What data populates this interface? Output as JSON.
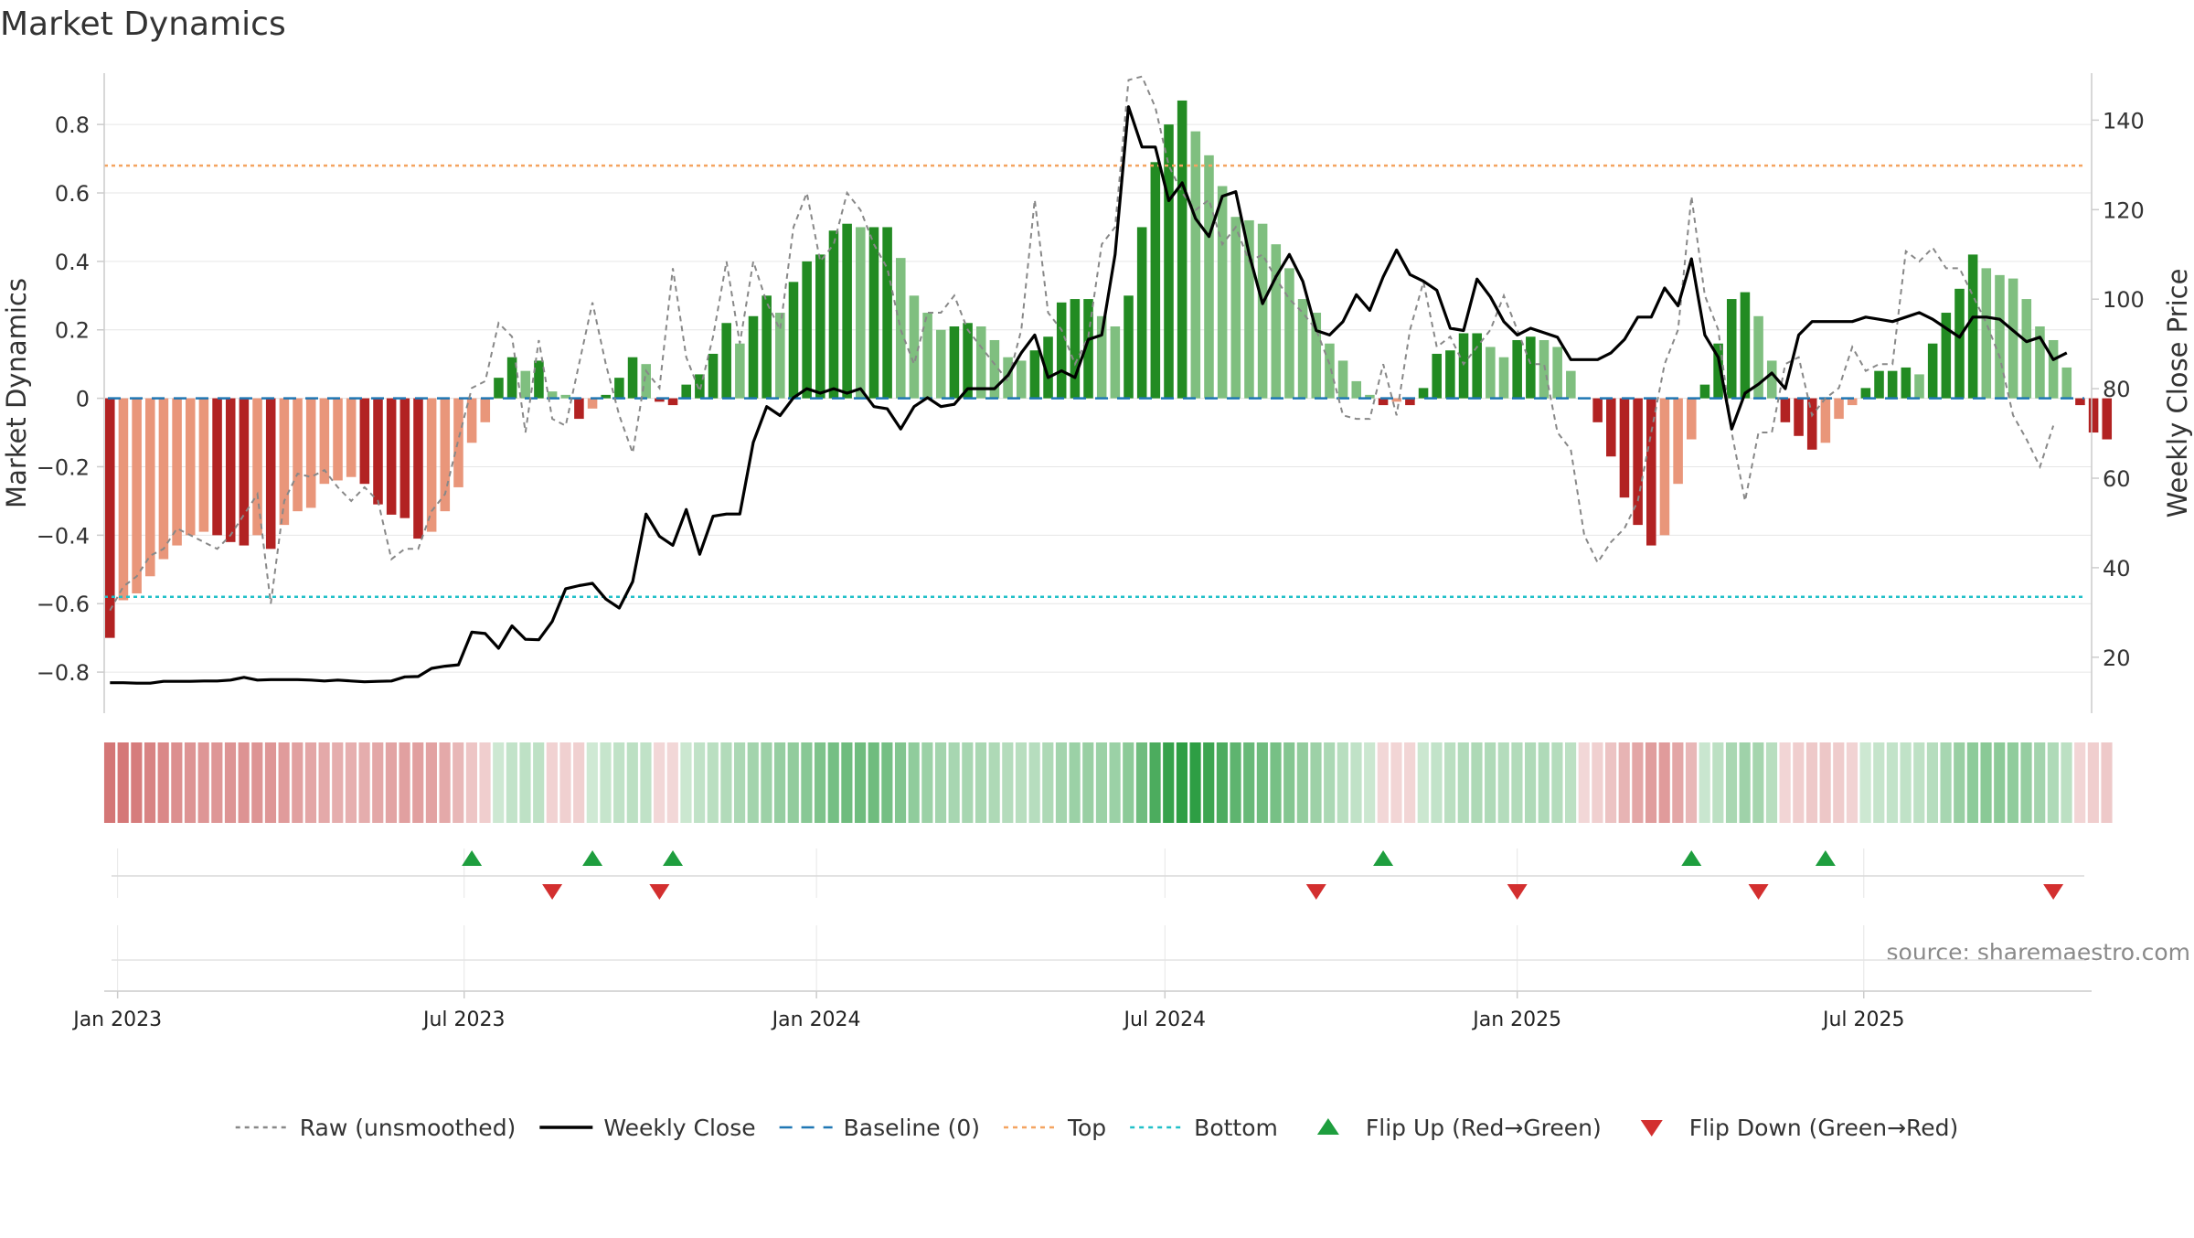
{
  "chart_data": {
    "type": "bar",
    "title": "Market Dynamics",
    "ylabel": "Market Dynamics",
    "y2label": "Weekly Close Price",
    "source": "source: sharemaestro.com",
    "ylim": [
      -0.92,
      0.95
    ],
    "y2lim": [
      7.5,
      150.5
    ],
    "y_ticks": [
      -0.8,
      -0.6,
      -0.4,
      -0.2,
      0,
      0.2,
      0.4,
      0.6,
      0.8
    ],
    "y_tick_labels": [
      "−0.8",
      "−0.6",
      "−0.4",
      "−0.2",
      "0",
      "0.2",
      "0.4",
      "0.6",
      "0.8"
    ],
    "y2_ticks": [
      20,
      40,
      60,
      80,
      100,
      120,
      140
    ],
    "y2_tick_labels": [
      "20",
      "40",
      "60",
      "80",
      "100",
      "120",
      "140"
    ],
    "x_ticks": [
      "2023-01-01",
      "2023-07-01",
      "2024-01-01",
      "2024-07-01",
      "2025-01-01",
      "2025-07-01"
    ],
    "x_tick_labels": [
      "Jan 2023",
      "Jul 2023",
      "Jan 2024",
      "Jul 2024",
      "Jan 2025",
      "Jul 2025"
    ],
    "x_range": [
      "2022-12-25",
      "2025-10-28"
    ],
    "first_week": "2022-12-28",
    "week_step_days": 7,
    "top_level": 0.68,
    "bottom_level": -0.58,
    "baseline": 0,
    "dynamics": [
      -0.7,
      -0.59,
      -0.57,
      -0.52,
      -0.47,
      -0.43,
      -0.4,
      -0.39,
      -0.4,
      -0.42,
      -0.43,
      -0.4,
      -0.44,
      -0.37,
      -0.33,
      -0.32,
      -0.25,
      -0.24,
      -0.23,
      -0.25,
      -0.31,
      -0.34,
      -0.35,
      -0.41,
      -0.39,
      -0.33,
      -0.26,
      -0.13,
      -0.07,
      0.06,
      0.12,
      0.08,
      0.11,
      0.02,
      0.01,
      -0.06,
      -0.03,
      0.01,
      0.06,
      0.12,
      0.1,
      -0.01,
      -0.02,
      0.04,
      0.07,
      0.13,
      0.22,
      0.16,
      0.24,
      0.3,
      0.25,
      0.34,
      0.4,
      0.42,
      0.49,
      0.51,
      0.5,
      0.5,
      0.5,
      0.41,
      0.3,
      0.25,
      0.2,
      0.21,
      0.22,
      0.21,
      0.17,
      0.12,
      0.11,
      0.14,
      0.18,
      0.28,
      0.29,
      0.29,
      0.24,
      0.21,
      0.3,
      0.5,
      0.69,
      0.8,
      0.87,
      0.78,
      0.71,
      0.62,
      0.53,
      0.52,
      0.51,
      0.45,
      0.38,
      0.29,
      0.25,
      0.16,
      0.11,
      0.05,
      0.01,
      -0.02,
      -0.01,
      -0.02,
      0.03,
      0.13,
      0.14,
      0.19,
      0.19,
      0.15,
      0.12,
      0.17,
      0.18,
      0.17,
      0.15,
      0.08,
      0.0,
      -0.07,
      -0.17,
      -0.29,
      -0.37,
      -0.43,
      -0.4,
      -0.25,
      -0.12,
      0.04,
      0.16,
      0.29,
      0.31,
      0.24,
      0.11,
      -0.07,
      -0.11,
      -0.15,
      -0.13,
      -0.06,
      -0.02,
      0.03,
      0.08,
      0.08,
      0.09,
      0.07,
      0.16,
      0.25,
      0.32,
      0.42,
      0.38,
      0.36,
      0.35,
      0.29,
      0.21,
      0.17,
      0.09,
      -0.02,
      -0.1,
      -0.12
    ],
    "raw": [
      -0.62,
      -0.55,
      -0.52,
      -0.46,
      -0.44,
      -0.38,
      -0.4,
      -0.42,
      -0.44,
      -0.4,
      -0.34,
      -0.28,
      -0.6,
      -0.3,
      -0.22,
      -0.23,
      -0.21,
      -0.26,
      -0.3,
      -0.26,
      -0.3,
      -0.47,
      -0.44,
      -0.44,
      -0.33,
      -0.28,
      -0.12,
      0.03,
      0.05,
      0.22,
      0.18,
      -0.1,
      0.17,
      -0.06,
      -0.08,
      0.1,
      0.28,
      0.1,
      -0.05,
      -0.16,
      0.08,
      0.03,
      0.38,
      0.12,
      0.02,
      0.18,
      0.4,
      0.16,
      0.4,
      0.28,
      0.2,
      0.5,
      0.6,
      0.4,
      0.45,
      0.6,
      0.55,
      0.45,
      0.38,
      0.2,
      0.1,
      0.25,
      0.25,
      0.3,
      0.2,
      0.15,
      0.1,
      0.05,
      0.2,
      0.58,
      0.25,
      0.2,
      0.1,
      0.18,
      0.45,
      0.5,
      0.93,
      0.94,
      0.85,
      0.68,
      0.6,
      0.55,
      0.58,
      0.45,
      0.5,
      0.4,
      0.42,
      0.35,
      0.29,
      0.25,
      0.2,
      0.1,
      -0.05,
      -0.06,
      -0.06,
      0.1,
      -0.05,
      0.2,
      0.34,
      0.15,
      0.18,
      0.1,
      0.15,
      0.2,
      0.3,
      0.2,
      0.1,
      0.1,
      -0.1,
      -0.15,
      -0.4,
      -0.48,
      -0.42,
      -0.38,
      -0.3,
      -0.1,
      0.1,
      0.2,
      0.59,
      0.3,
      0.2,
      -0.1,
      -0.3,
      -0.1,
      -0.1,
      0.1,
      0.12,
      -0.05,
      0.0,
      0.03,
      0.15,
      0.08,
      0.1,
      0.1,
      0.43,
      0.4,
      0.44,
      0.38,
      0.38,
      0.3,
      0.22,
      0.12,
      -0.05,
      -0.12,
      -0.2,
      -0.08
    ],
    "price": [
      14.3,
      14.3,
      14.2,
      14.2,
      14.6,
      14.6,
      14.6,
      14.7,
      14.7,
      14.9,
      15.5,
      14.9,
      15.0,
      15.0,
      15.0,
      14.9,
      14.7,
      14.9,
      14.7,
      14.5,
      14.6,
      14.7,
      15.6,
      15.7,
      17.5,
      18.0,
      18.3,
      25.6,
      25.3,
      22.0,
      27.0,
      24.0,
      23.9,
      28.0,
      35.3,
      36.0,
      36.5,
      33.0,
      31.0,
      36.9,
      52.0,
      47.0,
      45.0,
      53.0,
      43.0,
      51.5,
      52.0,
      52.0,
      68.0,
      76.0,
      74.0,
      78.0,
      80.0,
      79.0,
      80.0,
      79.0,
      80.0,
      76.0,
      75.5,
      71.0,
      76.0,
      78.0,
      76.0,
      76.5,
      80.0,
      80.0,
      80.0,
      83.0,
      88.0,
      92.0,
      82.5,
      84.0,
      82.5,
      91.0,
      92.0,
      110.0,
      143.0,
      134.0,
      134.0,
      122.0,
      126.0,
      118.0,
      114.0,
      123.0,
      124.0,
      110.0,
      99.0,
      105.0,
      110.0,
      104.0,
      93.0,
      92.0,
      95.0,
      101.0,
      97.5,
      105.0,
      111.0,
      105.5,
      104.0,
      102.0,
      93.5,
      93.0,
      104.5,
      100.5,
      95.0,
      92.0,
      93.5,
      92.5,
      91.5,
      86.5,
      86.5,
      86.5,
      88.0,
      91.0,
      96.0,
      96.0,
      102.5,
      98.5,
      109.0,
      92.0,
      87.0,
      71.0,
      79.0,
      81.0,
      83.5,
      80.0,
      92.0,
      95.0,
      95.0,
      95.0,
      95.0,
      96.0,
      95.5,
      95.0,
      96.0,
      97.0,
      95.5,
      93.5,
      91.5,
      96.0,
      96.0,
      95.5,
      93.0,
      90.5,
      91.5,
      86.5,
      88.0
    ],
    "band_levels": [
      -0.59,
      -0.58,
      -0.56,
      -0.52,
      -0.48,
      -0.44,
      -0.41,
      -0.4,
      -0.4,
      -0.41,
      -0.42,
      -0.41,
      -0.4,
      -0.37,
      -0.34,
      -0.31,
      -0.28,
      -0.26,
      -0.25,
      -0.26,
      -0.29,
      -0.32,
      -0.34,
      -0.35,
      -0.33,
      -0.28,
      -0.2,
      -0.12,
      -0.06,
      0.02,
      0.07,
      0.09,
      0.09,
      -0.04,
      -0.05,
      -0.05,
      0.01,
      0.05,
      0.08,
      0.1,
      0.08,
      -0.01,
      -0.01,
      0.03,
      0.08,
      0.12,
      0.16,
      0.19,
      0.23,
      0.26,
      0.29,
      0.32,
      0.37,
      0.42,
      0.46,
      0.49,
      0.5,
      0.49,
      0.46,
      0.4,
      0.33,
      0.27,
      0.23,
      0.21,
      0.21,
      0.2,
      0.18,
      0.15,
      0.13,
      0.14,
      0.18,
      0.23,
      0.27,
      0.28,
      0.27,
      0.27,
      0.35,
      0.5,
      0.67,
      0.78,
      0.84,
      0.82,
      0.75,
      0.66,
      0.58,
      0.53,
      0.5,
      0.45,
      0.39,
      0.32,
      0.26,
      0.19,
      0.13,
      0.08,
      0.03,
      -0.01,
      -0.02,
      -0.02,
      0.03,
      0.07,
      0.12,
      0.16,
      0.18,
      0.17,
      0.15,
      0.16,
      0.17,
      0.17,
      0.15,
      0.1,
      -0.01,
      -0.05,
      -0.13,
      -0.22,
      -0.3,
      -0.36,
      -0.37,
      -0.31,
      -0.2,
      0.04,
      0.11,
      0.2,
      0.25,
      0.22,
      0.13,
      -0.02,
      -0.06,
      -0.09,
      -0.1,
      -0.07,
      -0.03,
      0.02,
      0.06,
      0.07,
      0.08,
      0.09,
      0.14,
      0.21,
      0.28,
      0.34,
      0.36,
      0.35,
      0.33,
      0.29,
      0.23,
      0.17,
      0.1,
      -0.02,
      -0.06,
      -0.09
    ],
    "flip_up": [
      "2023-07-05",
      "2023-09-06",
      "2023-10-18",
      "2024-10-23",
      "2025-04-02",
      "2025-06-11"
    ],
    "flip_down": [
      "2023-08-16",
      "2023-10-11",
      "2024-09-18",
      "2025-01-01",
      "2025-05-07",
      "2025-10-08"
    ],
    "legend": [
      {
        "label": "Raw (unsmoothed)",
        "kind": "line-dotted",
        "color": "#888888"
      },
      {
        "label": "Weekly Close",
        "kind": "line",
        "color": "#000000"
      },
      {
        "label": "Baseline (0)",
        "kind": "line-dashed",
        "color": "#1f77b4"
      },
      {
        "label": "Top",
        "kind": "line-dotted",
        "color": "#f4a460"
      },
      {
        "label": "Bottom",
        "kind": "line-dotted",
        "color": "#20c0c8"
      },
      {
        "label": "Flip Up (Red→Green)",
        "kind": "triangle-up",
        "color": "#1e9e3e"
      },
      {
        "label": "Flip Down (Green→Red)",
        "kind": "triangle-down",
        "color": "#d32f2f"
      }
    ],
    "colors": {
      "bar_green_dark": "#228b22",
      "bar_green_light": "#7fbf7f",
      "bar_red_dark": "#b22222",
      "bar_red_light": "#e9967a",
      "price_line": "#000000",
      "raw_line": "#888888",
      "baseline": "#1f77b4",
      "top": "#f4a460",
      "bottom": "#20c0c8",
      "grid": "#e6e6e6",
      "band_green": "#2e9e44",
      "band_red": "#c85050",
      "flip_up": "#1e9e3e",
      "flip_down": "#d32f2f"
    }
  }
}
